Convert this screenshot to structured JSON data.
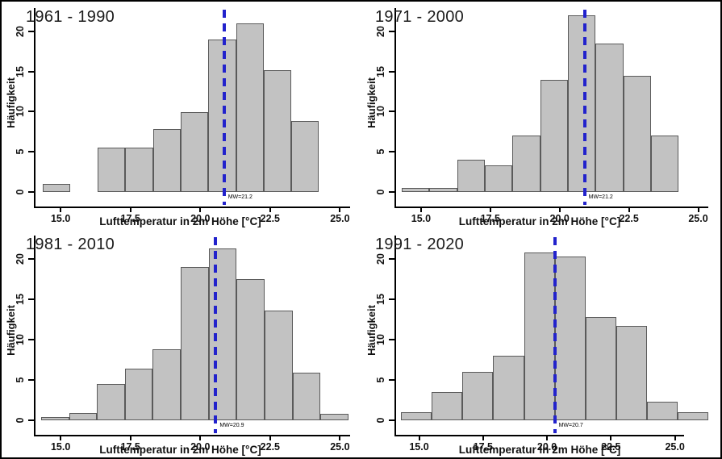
{
  "figure": {
    "background": "#ffffff",
    "border_color": "#000000"
  },
  "styles": {
    "bar_fill": "#c2c2c2",
    "bar_stroke": "#5a5a5a",
    "mean_line_color": "#2222cc",
    "axis_color": "#000000",
    "text_color": "#111111"
  },
  "chart_data": [
    {
      "type": "histogram",
      "title": "1961 - 1990",
      "xlabel": "Lufttemperatur in 2m Höhe [°C]",
      "ylabel": "Häufigkeit",
      "mean_label": "MW=21.2",
      "mean_value": 21.2,
      "line_x": 20.85,
      "bin_start": 14.35,
      "bin_width": 0.99,
      "values": [
        1,
        0,
        5.5,
        5.5,
        7.8,
        9.9,
        19,
        21,
        15.2,
        8.8
      ],
      "x_tick_values": [
        15,
        17.5,
        20,
        22.5,
        25
      ],
      "x_tick_labels": [
        "15.0",
        "17.5",
        "20.0",
        "22.5",
        "25.0"
      ],
      "y_tick_values": [
        0,
        5,
        10,
        15,
        20
      ],
      "y_tick_labels": [
        "0",
        "5",
        "10",
        "15",
        "20"
      ],
      "x_domain": [
        14.1,
        25.45
      ],
      "y_max": 22.3,
      "axis_x_end": 25.35
    },
    {
      "type": "histogram",
      "title": "1971 - 2000",
      "xlabel": "Lufttemperatur in 2m Höhe [°C]",
      "ylabel": "Häufigkeit",
      "mean_label": "MW=21.2",
      "mean_value": 21.2,
      "line_x": 20.9,
      "bin_start": 14.3,
      "bin_width": 1.0,
      "values": [
        0.5,
        0.5,
        4,
        3.3,
        7,
        14,
        22,
        18.5,
        14.5,
        7
      ],
      "x_tick_values": [
        15,
        17.5,
        20,
        22.5,
        25
      ],
      "x_tick_labels": [
        "15.0",
        "17.5",
        "20.0",
        "22.5",
        "25.0"
      ],
      "y_tick_values": [
        0,
        5,
        10,
        15,
        20
      ],
      "y_tick_labels": [
        "0",
        "5",
        "10",
        "15",
        "20"
      ],
      "x_domain": [
        14.1,
        25.45
      ],
      "y_max": 22.3,
      "axis_x_end": 25.35
    },
    {
      "type": "histogram",
      "title": "1981 - 2010",
      "xlabel": "Lufttemperatur in 2m Höhe [°C]",
      "ylabel": "Häufigkeit",
      "mean_label": "MW=20.9",
      "mean_value": 20.9,
      "line_x": 20.55,
      "bin_start": 14.3,
      "bin_width": 1.0,
      "values": [
        0.4,
        0.9,
        4.5,
        6.4,
        8.8,
        19,
        21.3,
        17.5,
        13.6,
        5.9,
        0.8
      ],
      "x_tick_values": [
        15,
        17.5,
        20,
        22.5,
        25
      ],
      "x_tick_labels": [
        "15.0",
        "17.5",
        "20.0",
        "22.5",
        "25.0"
      ],
      "y_tick_values": [
        0,
        5,
        10,
        15,
        20
      ],
      "y_tick_labels": [
        "0",
        "5",
        "10",
        "15",
        "20"
      ],
      "x_domain": [
        14.1,
        25.45
      ],
      "y_max": 22.3,
      "axis_x_end": 25.35
    },
    {
      "type": "histogram",
      "title": "1991 - 2020",
      "xlabel": "Lufttemperatur in 2m Höhe [°C]",
      "ylabel": "Häufigkeit",
      "mean_label": "MW=20.7",
      "mean_value": 20.7,
      "line_x": 20.3,
      "bin_start": 14.3,
      "bin_width": 1.2,
      "values": [
        1,
        3.5,
        6,
        8,
        20.8,
        20.3,
        12.8,
        11.7,
        2.3,
        1
      ],
      "x_tick_values": [
        15,
        17.5,
        20,
        22.5,
        25
      ],
      "x_tick_labels": [
        "15.0",
        "17.5",
        "20.0",
        "22.5",
        "25.0"
      ],
      "y_tick_values": [
        0,
        5,
        10,
        15,
        20
      ],
      "y_tick_labels": [
        "0",
        "5",
        "10",
        "15",
        "20"
      ],
      "x_domain": [
        14.1,
        26.4
      ],
      "y_max": 22.3,
      "axis_x_end": 25.35
    }
  ]
}
